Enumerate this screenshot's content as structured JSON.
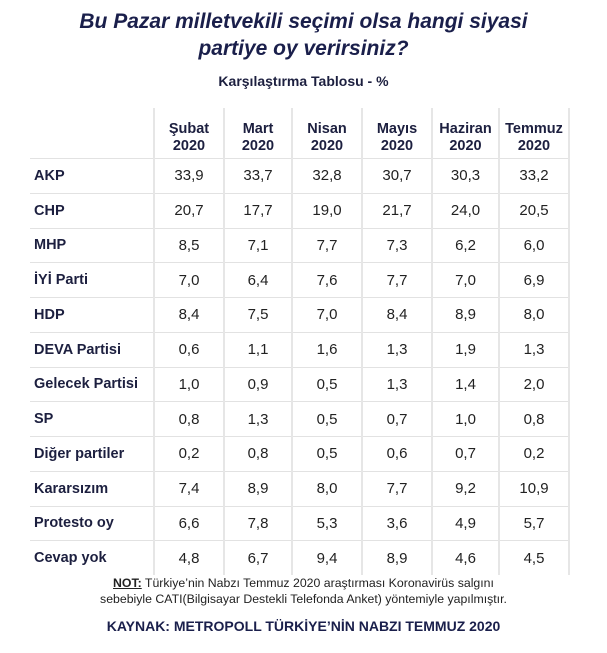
{
  "title_line1": "Bu Pazar milletvekili seçimi olsa hangi siyasi",
  "title_line2": "partiye oy verirsiniz?",
  "subtitle": "Karşılaştırma Tablosu - %",
  "note_label": "NOT:",
  "note_line1": " Türkiye’nin Nabzı Temmuz 2020 araştırması Koronavirüs salgını",
  "note_line2": "sebebiyle CATI(Bilgisayar Destekli Telefonda Anket) yöntemiyle yapılmıştır.",
  "source": "KAYNAK: METROPOLL TÜRKİYE’NİN NABZI TEMMUZ 2020",
  "colors": {
    "title": "#1a1f4b",
    "grid": "#e2e2e2"
  },
  "chart_data": {
    "type": "table",
    "title": "Bu Pazar milletvekili seçimi olsa hangi siyasi partiye oy verirsiniz?",
    "subtitle": "Karşılaştırma Tablosu - %",
    "columns": [
      {
        "month": "Şubat",
        "year": "2020"
      },
      {
        "month": "Mart",
        "year": "2020"
      },
      {
        "month": "Nisan",
        "year": "2020"
      },
      {
        "month": "Mayıs",
        "year": "2020"
      },
      {
        "month": "Haziran",
        "year": "2020"
      },
      {
        "month": "Temmuz",
        "year": "2020"
      }
    ],
    "rows": [
      {
        "label": "AKP",
        "values": [
          "33,9",
          "33,7",
          "32,8",
          "30,7",
          "30,3",
          "33,2"
        ]
      },
      {
        "label": "CHP",
        "values": [
          "20,7",
          "17,7",
          "19,0",
          "21,7",
          "24,0",
          "20,5"
        ]
      },
      {
        "label": "MHP",
        "values": [
          "8,5",
          "7,1",
          "7,7",
          "7,3",
          "6,2",
          "6,0"
        ]
      },
      {
        "label": "İYİ Parti",
        "values": [
          "7,0",
          "6,4",
          "7,6",
          "7,7",
          "7,0",
          "6,9"
        ]
      },
      {
        "label": "HDP",
        "values": [
          "8,4",
          "7,5",
          "7,0",
          "8,4",
          "8,9",
          "8,0"
        ]
      },
      {
        "label": "DEVA Partisi",
        "values": [
          "0,6",
          "1,1",
          "1,6",
          "1,3",
          "1,9",
          "1,3"
        ]
      },
      {
        "label": "Gelecek Partisi",
        "values": [
          "1,0",
          "0,9",
          "0,5",
          "1,3",
          "1,4",
          "2,0"
        ]
      },
      {
        "label": "SP",
        "values": [
          "0,8",
          "1,3",
          "0,5",
          "0,7",
          "1,0",
          "0,8"
        ]
      },
      {
        "label": "Diğer partiler",
        "values": [
          "0,2",
          "0,8",
          "0,5",
          "0,6",
          "0,7",
          "0,2"
        ]
      },
      {
        "label": "Kararsızım",
        "values": [
          "7,4",
          "8,9",
          "8,0",
          "7,7",
          "9,2",
          "10,9"
        ]
      },
      {
        "label": "Protesto oy",
        "values": [
          "6,6",
          "7,8",
          "5,3",
          "3,6",
          "4,9",
          "5,7"
        ]
      },
      {
        "label": "Cevap yok",
        "values": [
          "4,8",
          "6,7",
          "9,4",
          "8,9",
          "4,6",
          "4,5"
        ]
      }
    ]
  }
}
